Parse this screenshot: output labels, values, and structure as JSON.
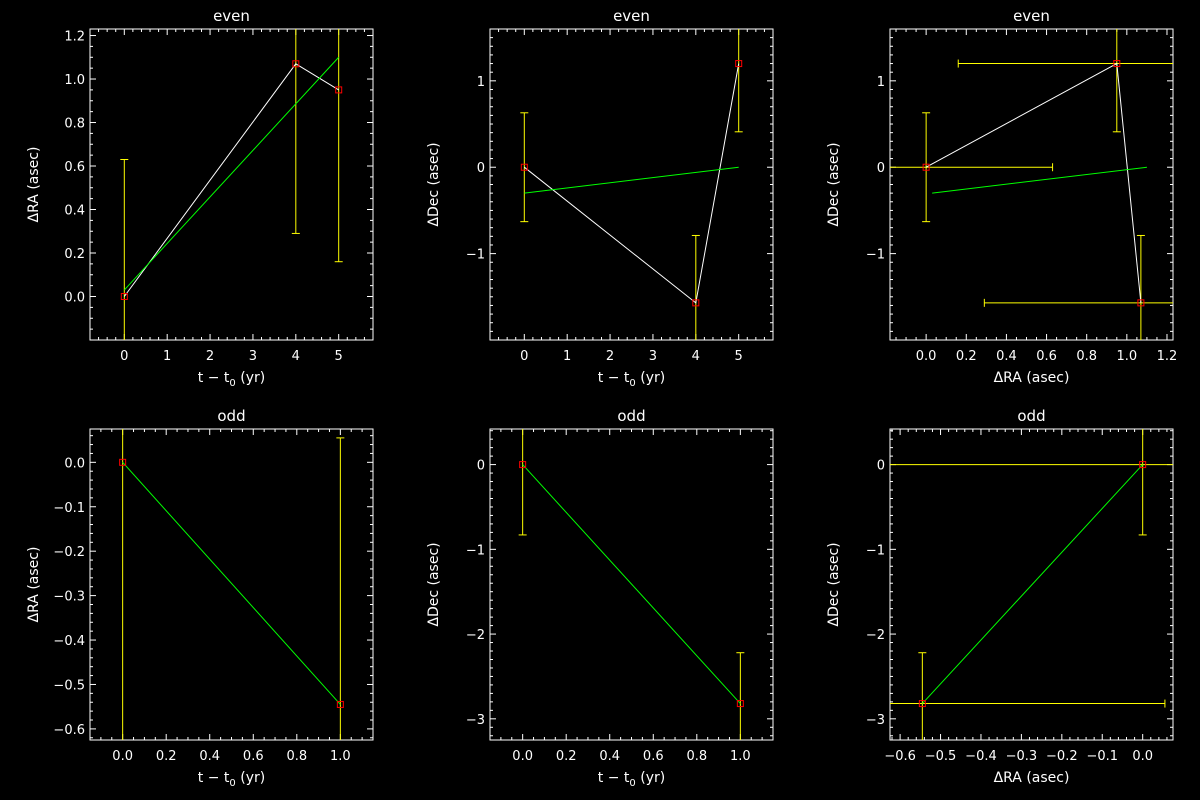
{
  "chart_data": [
    {
      "type": "scatter",
      "title": "even",
      "xlabel": "t − t",
      "xlabel_sub": "0",
      "xlabel_tail": " (yr)",
      "ylabel": "ΔRA (asec)",
      "xlim": [
        -0.8,
        5.8
      ],
      "ylim": [
        -0.2,
        1.23
      ],
      "xticks": [
        0,
        1,
        2,
        3,
        4,
        5
      ],
      "xtick_labels": [
        "0",
        "1",
        "2",
        "3",
        "4",
        "5"
      ],
      "xminor": 0.2,
      "yticks": [
        0.0,
        0.2,
        0.4,
        0.6,
        0.8,
        1.0,
        1.2
      ],
      "ytick_labels": [
        "0.0",
        "0.2",
        "0.4",
        "0.6",
        "0.8",
        "1.0",
        "1.2"
      ],
      "yminor": 0.05,
      "points": [
        {
          "x": 0,
          "y": 0.0,
          "yerr": 0.63
        },
        {
          "x": 4,
          "y": 1.07,
          "yerr": 0.78
        },
        {
          "x": 5,
          "y": 0.95,
          "yerr": 0.79
        }
      ],
      "connect": true,
      "fit": [
        [
          0,
          0.03
        ],
        [
          5,
          1.1
        ]
      ],
      "colors": {
        "points": "#ff0000",
        "errors": "#ffff00",
        "connect": "#ffffff",
        "fit": "#00ff00"
      }
    },
    {
      "type": "scatter",
      "title": "even",
      "xlabel": "t − t",
      "xlabel_sub": "0",
      "xlabel_tail": " (yr)",
      "ylabel": "ΔDec (asec)",
      "xlim": [
        -0.8,
        5.8
      ],
      "ylim": [
        -2.0,
        1.6
      ],
      "xticks": [
        0,
        1,
        2,
        3,
        4,
        5
      ],
      "xtick_labels": [
        "0",
        "1",
        "2",
        "3",
        "4",
        "5"
      ],
      "xminor": 0.2,
      "yticks": [
        -1,
        0,
        1
      ],
      "ytick_labels": [
        "−1",
        "0",
        "1"
      ],
      "yminor": 0.1,
      "points": [
        {
          "x": 0,
          "y": 0.0,
          "yerr": 0.63
        },
        {
          "x": 4,
          "y": -1.57,
          "yerr": 0.78
        },
        {
          "x": 5,
          "y": 1.2,
          "yerr": 0.79
        }
      ],
      "connect": true,
      "fit": [
        [
          0,
          -0.3
        ],
        [
          5,
          0.0
        ]
      ],
      "colors": {
        "points": "#ff0000",
        "errors": "#ffff00",
        "connect": "#ffffff",
        "fit": "#00ff00"
      }
    },
    {
      "type": "scatter",
      "title": "even",
      "xlabel": "ΔRA (asec)",
      "ylabel": "ΔDec (asec)",
      "xlim": [
        -0.18,
        1.23
      ],
      "ylim": [
        -2.0,
        1.6
      ],
      "xticks": [
        0.0,
        0.2,
        0.4,
        0.6,
        0.8,
        1.0,
        1.2
      ],
      "xtick_labels": [
        "0.0",
        "0.2",
        "0.4",
        "0.6",
        "0.8",
        "1.0",
        "1.2"
      ],
      "xminor": 0.05,
      "yticks": [
        -1,
        0,
        1
      ],
      "ytick_labels": [
        "−1",
        "0",
        "1"
      ],
      "yminor": 0.1,
      "points": [
        {
          "x": 0.0,
          "y": 0.0,
          "xerr": 0.63,
          "yerr": 0.63
        },
        {
          "x": 0.95,
          "y": 1.2,
          "xerr": 0.79,
          "yerr": 0.79
        },
        {
          "x": 1.07,
          "y": -1.57,
          "xerr": 0.78,
          "yerr": 0.78
        }
      ],
      "connect": true,
      "fit": [
        [
          0.03,
          -0.3
        ],
        [
          1.1,
          0.0
        ]
      ],
      "colors": {
        "points": "#ff0000",
        "errors": "#ffff00",
        "connect": "#ffffff",
        "fit": "#00ff00"
      }
    },
    {
      "type": "scatter",
      "title": "odd",
      "xlabel": "t − t",
      "xlabel_sub": "0",
      "xlabel_tail": " (yr)",
      "ylabel": "ΔRA (asec)",
      "xlim": [
        -0.15,
        1.15
      ],
      "ylim": [
        -0.625,
        0.075
      ],
      "xticks": [
        0.0,
        0.2,
        0.4,
        0.6,
        0.8,
        1.0
      ],
      "xtick_labels": [
        "0.0",
        "0.2",
        "0.4",
        "0.6",
        "0.8",
        "1.0"
      ],
      "xminor": 0.05,
      "yticks": [
        0.0,
        -0.1,
        -0.2,
        -0.3,
        -0.4,
        -0.5,
        -0.6
      ],
      "ytick_labels": [
        "0.0",
        "−0.1",
        "−0.2",
        "−0.3",
        "−0.4",
        "−0.5",
        "−0.6"
      ],
      "yminor": 0.02,
      "points": [
        {
          "x": 0.0,
          "y": 0.0,
          "yerr": 0.7
        },
        {
          "x": 1.0,
          "y": -0.545,
          "yerr": 0.6
        }
      ],
      "connect": false,
      "fit": [
        [
          0.0,
          0.0
        ],
        [
          1.0,
          -0.545
        ]
      ],
      "colors": {
        "points": "#ff0000",
        "errors": "#ffff00",
        "fit": "#00ff00"
      }
    },
    {
      "type": "scatter",
      "title": "odd",
      "xlabel": "t − t",
      "xlabel_sub": "0",
      "xlabel_tail": " (yr)",
      "ylabel": "ΔDec (asec)",
      "xlim": [
        -0.15,
        1.15
      ],
      "ylim": [
        -3.25,
        0.42
      ],
      "xticks": [
        0.0,
        0.2,
        0.4,
        0.6,
        0.8,
        1.0
      ],
      "xtick_labels": [
        "0.0",
        "0.2",
        "0.4",
        "0.6",
        "0.8",
        "1.0"
      ],
      "xminor": 0.05,
      "yticks": [
        0,
        -1,
        -2,
        -3
      ],
      "ytick_labels": [
        "0",
        "−1",
        "−2",
        "−3"
      ],
      "yminor": 0.1,
      "points": [
        {
          "x": 0.0,
          "y": 0.0,
          "yerr": 0.83
        },
        {
          "x": 1.0,
          "y": -2.82,
          "yerr": 0.6
        }
      ],
      "connect": false,
      "fit": [
        [
          0.0,
          0.0
        ],
        [
          1.0,
          -2.82
        ]
      ],
      "colors": {
        "points": "#ff0000",
        "errors": "#ffff00",
        "fit": "#00ff00"
      }
    },
    {
      "type": "scatter",
      "title": "odd",
      "xlabel": "ΔRA (asec)",
      "ylabel": "ΔDec (asec)",
      "xlim": [
        -0.625,
        0.075
      ],
      "ylim": [
        -3.25,
        0.42
      ],
      "xticks": [
        -0.6,
        -0.5,
        -0.4,
        -0.3,
        -0.2,
        -0.1,
        0.0
      ],
      "xtick_labels": [
        "−0.6",
        "−0.5",
        "−0.4",
        "−0.3",
        "−0.2",
        "−0.1",
        "0.0"
      ],
      "xminor": 0.02,
      "yticks": [
        0,
        -1,
        -2,
        -3
      ],
      "ytick_labels": [
        "0",
        "−1",
        "−2",
        "−3"
      ],
      "yminor": 0.1,
      "points": [
        {
          "x": 0.0,
          "y": 0.0,
          "xerr": 0.7,
          "yerr": 0.83
        },
        {
          "x": -0.545,
          "y": -2.82,
          "xerr": 0.6,
          "yerr": 0.6
        }
      ],
      "connect": false,
      "fit": [
        [
          0.0,
          0.0
        ],
        [
          -0.545,
          -2.82
        ]
      ],
      "colors": {
        "points": "#ff0000",
        "errors": "#ffff00",
        "fit": "#00ff00"
      }
    }
  ]
}
